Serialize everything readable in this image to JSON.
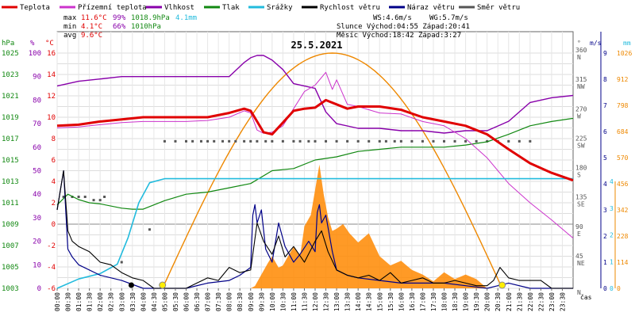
{
  "chart_data": {
    "type": "line",
    "title": "25.5.2021",
    "xlabel": "čas",
    "legend": [
      {
        "key": "teplota",
        "name": "Teplota",
        "color": "#e00000"
      },
      {
        "key": "prizemni",
        "name": "Přízemní teplota",
        "color": "#cc33cc"
      },
      {
        "key": "vlhkost",
        "name": "Vlhkost",
        "color": "#8800aa"
      },
      {
        "key": "tlak",
        "name": "Tlak",
        "color": "#118811"
      },
      {
        "key": "srazky",
        "name": "Srážky",
        "color": "#22bbdd"
      },
      {
        "key": "rychlost",
        "name": "Rychlost větru",
        "color": "#000000"
      },
      {
        "key": "naraz",
        "name": "Náraz větru",
        "color": "#000088"
      },
      {
        "key": "smer",
        "name": "Směr větru",
        "color": "#555555"
      }
    ],
    "stats": {
      "max": {
        "label": "max",
        "temp": "11.6°C",
        "hum": "99%",
        "press": "1018.9hPa",
        "rain": "4.1mm"
      },
      "min": {
        "label": "min",
        "temp": "4.1°C",
        "hum": "66%",
        "press": "1010hPa"
      },
      "avg": {
        "label": "avg",
        "temp": "9.6°C"
      }
    },
    "info": {
      "ws": "WS:4.6m/s",
      "wg": "WG:5.7m/s",
      "sun": "Slunce Východ:04:55  Západ:20:41",
      "moon": "Měsíc  Východ:18:42  Západ:3:27"
    },
    "axes": {
      "hpa": {
        "unit": "hPa",
        "ticks": [
          "1025",
          "1023",
          "1021",
          "1019",
          "1017",
          "1015",
          "1013",
          "1011",
          "1009",
          "1007",
          "1005",
          "1003"
        ]
      },
      "pct": {
        "unit": "%",
        "ticks": [
          "100",
          "90",
          "80",
          "70",
          "60",
          "50",
          "40",
          "30",
          "20",
          "10",
          "0"
        ]
      },
      "degc": {
        "unit": "°C",
        "ticks": [
          "16",
          "14",
          "12",
          "10",
          "8",
          "6",
          "4",
          "2",
          "0",
          "-2",
          "-4",
          "-6"
        ]
      },
      "dir": {
        "unit": "°",
        "ticks": [
          {
            "deg": "360",
            "lbl": "N"
          },
          {
            "deg": "315",
            "lbl": "NW"
          },
          {
            "deg": "270",
            "lbl": "W"
          },
          {
            "deg": "225",
            "lbl": "SW"
          },
          {
            "deg": "180",
            "lbl": "S"
          },
          {
            "deg": "135",
            "lbl": "SE"
          },
          {
            "deg": "90",
            "lbl": "E"
          },
          {
            "deg": "45",
            "lbl": "NE"
          },
          {
            "deg": "",
            "lbl": "N"
          }
        ]
      },
      "ms": {
        "unit": "m/s",
        "ticks": [
          "9",
          "8",
          "7",
          "6",
          "5",
          "4",
          "3",
          "2",
          "1",
          "0"
        ]
      },
      "mm": {
        "unit": "mm",
        "ticks": [
          "4",
          "3",
          "2",
          "1",
          "0"
        ]
      },
      "solar": {
        "unit": "",
        "ticks": [
          "1026",
          "912",
          "798",
          "684",
          "570",
          "456",
          "342",
          "228",
          "114",
          "0"
        ]
      }
    },
    "x_ticks": [
      "00:00",
      "00:30",
      "01:00",
      "01:30",
      "02:00",
      "02:30",
      "03:00",
      "03:30",
      "04:00",
      "04:30",
      "05:00",
      "05:30",
      "06:00",
      "06:30",
      "07:00",
      "07:30",
      "08:00",
      "08:30",
      "09:00",
      "09:30",
      "10:00",
      "10:30",
      "11:00",
      "11:30",
      "12:00",
      "12:30",
      "13:00",
      "13:30",
      "14:00",
      "14:30",
      "15:00",
      "15:30",
      "16:00",
      "16:30",
      "17:00",
      "17:30",
      "18:00",
      "18:30",
      "19:00",
      "19:30",
      "20:00",
      "20:30",
      "21:00",
      "21:30",
      "22:00",
      "22:30",
      "23:00",
      "23:30"
    ],
    "x_hours": [
      0,
      0.5,
      1,
      1.5,
      2,
      2.5,
      3,
      3.5,
      4,
      4.5,
      5,
      5.5,
      6,
      6.5,
      7,
      7.5,
      8,
      8.5,
      9,
      9.5,
      10,
      10.5,
      11,
      11.5,
      12,
      12.5,
      13,
      13.5,
      14,
      14.5,
      15,
      15.5,
      16,
      16.5,
      17,
      17.5,
      18,
      18.5,
      19,
      19.5,
      20,
      20.5,
      21,
      21.5,
      22,
      22.5,
      23,
      23.5
    ],
    "series_temperature_c": {
      "x": [
        0,
        1,
        2,
        3,
        4,
        5,
        6,
        7,
        8,
        8.7,
        9,
        9.3,
        9.6,
        10,
        10.5,
        11,
        11.5,
        12,
        12.5,
        13,
        13.5,
        14,
        15,
        16,
        17,
        18,
        19,
        20,
        21,
        22,
        23,
        24
      ],
      "y": [
        9.2,
        9.3,
        9.6,
        9.8,
        10.0,
        10.0,
        10.0,
        10.0,
        10.4,
        10.8,
        10.6,
        9.6,
        8.6,
        8.4,
        9.5,
        10.6,
        10.8,
        10.9,
        11.6,
        11.2,
        10.8,
        11.0,
        11.0,
        10.7,
        10.0,
        9.6,
        9.2,
        8.4,
        7.0,
        5.7,
        4.8,
        4.1
      ]
    },
    "series_ground_temperature_c": {
      "x": [
        0,
        1,
        2,
        3,
        4,
        5,
        6,
        7,
        8,
        8.7,
        9,
        9.3,
        9.6,
        10,
        10.5,
        11,
        11.5,
        12,
        12.5,
        12.8,
        13,
        13.5,
        14,
        15,
        16,
        17,
        18,
        19,
        20,
        21,
        22,
        23,
        24
      ],
      "y": [
        9.0,
        9.1,
        9.3,
        9.5,
        9.6,
        9.6,
        9.6,
        9.7,
        10.0,
        10.6,
        10.4,
        8.8,
        8.5,
        8.6,
        9.2,
        10.8,
        12.4,
        13.0,
        14.2,
        12.6,
        13.5,
        11.2,
        11.0,
        10.4,
        10.3,
        9.6,
        9.2,
        8.0,
        6.2,
        3.8,
        2.0,
        0.4,
        -1.3
      ]
    },
    "series_humidity_pct": {
      "x": [
        0,
        1,
        2,
        3,
        4,
        5,
        6,
        7,
        8,
        8.7,
        9,
        9.3,
        9.6,
        10,
        10.5,
        11,
        11.5,
        12,
        12.5,
        13,
        14,
        15,
        16,
        17,
        18,
        19,
        20,
        21,
        22,
        23,
        24
      ],
      "y": [
        86,
        88,
        89,
        90,
        90,
        90,
        90,
        90,
        90,
        96,
        98,
        99,
        99,
        97,
        93,
        87,
        86,
        85,
        75,
        70,
        68,
        68,
        67,
        67,
        66,
        67,
        67,
        71,
        79,
        81,
        82
      ]
    },
    "series_pressure_hpa": {
      "x": [
        0,
        0.5,
        1,
        1.5,
        2,
        3,
        3.5,
        4,
        5,
        6,
        7,
        8,
        9,
        10,
        11,
        12,
        13,
        14,
        15,
        16,
        17,
        18,
        19,
        20,
        21,
        22,
        23,
        24
      ],
      "y": [
        1010.8,
        1011.8,
        1011.3,
        1011.0,
        1010.9,
        1010.5,
        1010.4,
        1010.4,
        1011.2,
        1011.8,
        1012.0,
        1012.4,
        1012.8,
        1014.0,
        1014.2,
        1015.0,
        1015.3,
        1015.8,
        1016.0,
        1016.2,
        1016.2,
        1016.2,
        1016.4,
        1016.7,
        1017.4,
        1018.2,
        1018.6,
        1018.9
      ]
    },
    "series_rain_mm": {
      "x": [
        0,
        1,
        2,
        2.8,
        3.3,
        3.8,
        4.3,
        5,
        24
      ],
      "y": [
        0,
        0.35,
        0.55,
        0.9,
        1.9,
        3.2,
        3.95,
        4.1,
        4.1
      ]
    },
    "series_wind_speed_ms": {
      "x": [
        0,
        0.3,
        0.5,
        0.7,
        1,
        1.5,
        2,
        2.5,
        3,
        3.5,
        4,
        4.5,
        5,
        5.5,
        6,
        6.5,
        7,
        7.5,
        8,
        8.5,
        9,
        9.3,
        9.6,
        10,
        10.3,
        10.6,
        11,
        11.5,
        12,
        12.3,
        12.6,
        13,
        13.5,
        14,
        14.5,
        15,
        15.5,
        16,
        16.5,
        17,
        17.5,
        18,
        18.5,
        19,
        19.5,
        20,
        20.3,
        20.6,
        21,
        21.5,
        22,
        22.5,
        23,
        23.5,
        24
      ],
      "y": [
        3,
        4.5,
        2.2,
        1.8,
        1.6,
        1.4,
        1.0,
        0.9,
        0.6,
        0.4,
        0.3,
        0.0,
        0.0,
        0.0,
        0.0,
        0.2,
        0.4,
        0.3,
        0.8,
        0.6,
        0.7,
        2.5,
        1.8,
        1.3,
        2.0,
        1.2,
        1.6,
        1.0,
        1.8,
        2.2,
        1.4,
        0.7,
        0.5,
        0.4,
        0.5,
        0.3,
        0.6,
        0.2,
        0.3,
        0.4,
        0.2,
        0.2,
        0.3,
        0.2,
        0.1,
        0.1,
        0.3,
        0.8,
        0.4,
        0.3,
        0.3,
        0.3,
        0.0,
        0.0,
        0.0
      ]
    },
    "series_wind_gust_ms": {
      "x": [
        0,
        0.3,
        0.5,
        0.7,
        1,
        2,
        3,
        4,
        5,
        6,
        7,
        8,
        8.5,
        9,
        9.1,
        9.2,
        9.3,
        9.5,
        9.7,
        10,
        10.3,
        10.6,
        11,
        11.3,
        11.7,
        12,
        12.1,
        12.2,
        12.3,
        12.5,
        12.8,
        13,
        13.5,
        14,
        15,
        16,
        17,
        18,
        19,
        20,
        21,
        22,
        23,
        24
      ],
      "y": [
        3,
        4.5,
        1.5,
        1.2,
        0.9,
        0.5,
        0.3,
        0.0,
        0.0,
        0.0,
        0.2,
        0.3,
        0.5,
        0.8,
        2.8,
        3.2,
        2.5,
        3.0,
        1.5,
        1.0,
        2.5,
        1.6,
        1.0,
        1.3,
        1.8,
        1.4,
        2.9,
        3.2,
        2.5,
        2.8,
        1.4,
        0.7,
        0.5,
        0.4,
        0.3,
        0.2,
        0.2,
        0.2,
        0.1,
        0.0,
        0.2,
        0.0,
        0.0,
        0.0
      ]
    },
    "series_wind_direction_deg": {
      "x": [
        0.3,
        0.7,
        1,
        1.3,
        1.7,
        2,
        2.2,
        3,
        4.3,
        5,
        5.5,
        6,
        6.3,
        6.7,
        7,
        7.3,
        7.7,
        8,
        8.3,
        8.7,
        9,
        9.3,
        9.7,
        10,
        10.5,
        11,
        11.3,
        11.7,
        12,
        12.5,
        13,
        13.5,
        14,
        14.5,
        15,
        15.3,
        15.7,
        16,
        16.5,
        17,
        17.5,
        18,
        18.5,
        19,
        19.5,
        20,
        20.5,
        21,
        21.5,
        22
      ],
      "y": [
        140,
        140,
        140,
        140,
        135,
        135,
        140,
        40,
        90,
        225,
        225,
        225,
        225,
        225,
        225,
        225,
        225,
        225,
        225,
        225,
        225,
        225,
        225,
        225,
        225,
        225,
        225,
        225,
        225,
        225,
        225,
        225,
        225,
        225,
        225,
        225,
        225,
        225,
        225,
        225,
        225,
        225,
        225,
        225,
        225,
        225,
        225,
        225,
        225,
        225
      ]
    },
    "series_solar_wm2": {
      "x": [
        9,
        9.2,
        9.5,
        9.8,
        10,
        10.3,
        10.5,
        10.8,
        11,
        11.3,
        11.5,
        11.8,
        12,
        12.2,
        12.4,
        12.6,
        12.8,
        13,
        13.3,
        13.6,
        14,
        14.5,
        15,
        15.5,
        16,
        16.5,
        17,
        17.5,
        18,
        18.5,
        19,
        19.5,
        20
      ],
      "y": [
        0,
        10,
        60,
        110,
        140,
        90,
        100,
        150,
        180,
        140,
        270,
        320,
        430,
        540,
        410,
        310,
        250,
        260,
        280,
        240,
        200,
        240,
        140,
        100,
        120,
        80,
        60,
        30,
        70,
        40,
        60,
        40,
        0
      ]
    },
    "sun_curve": {
      "rise": 4.9,
      "set": 20.7,
      "peak_hour": 12.8,
      "peak_value": 1026
    },
    "sun_markers_hour": [
      4.9,
      20.7
    ],
    "moon_marker_hour": 3.45
  }
}
